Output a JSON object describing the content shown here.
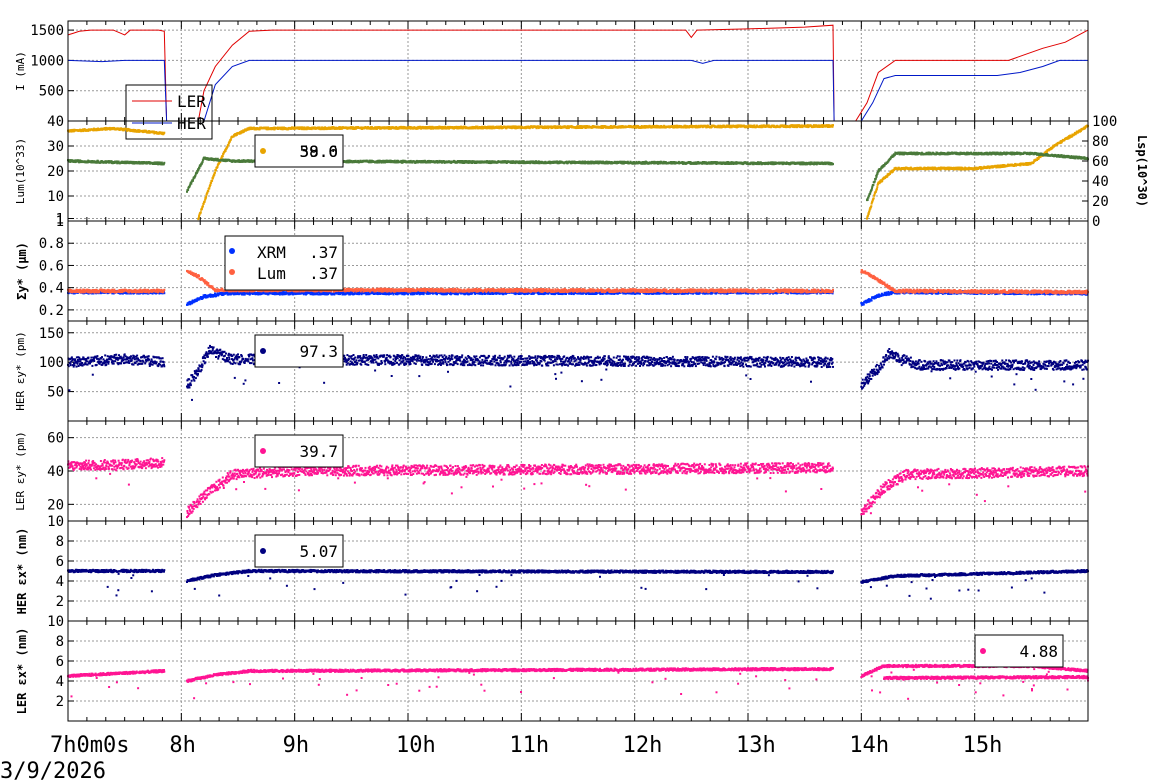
{
  "date": "3/9/2026",
  "time_axis": {
    "tick_labels": [
      "7h0m0s",
      "8h",
      "9h",
      "10h",
      "11h",
      "12h",
      "13h",
      "14h",
      "15h"
    ],
    "tick_hours": [
      7,
      8,
      9,
      10,
      11,
      12,
      13,
      14,
      15
    ],
    "range": [
      7.0,
      16.0
    ]
  },
  "colors": {
    "ler": "#e00000",
    "her": "#0018c8",
    "lum_orange": "#e8a400",
    "lum_green": "#4a7a3a",
    "xrm": "#0030ff",
    "lumsize": "#ff6040",
    "her_emit": "#000080",
    "ler_emit": "#ff1493"
  },
  "chart_data": [
    {
      "type": "line",
      "ylabel": "I (mA)",
      "ylim": [
        0,
        1650
      ],
      "ytick_labels": [
        "500",
        "1000",
        "1500"
      ],
      "yticks": [
        500,
        1000,
        1500
      ],
      "legend": {
        "placement": "bottom-left",
        "entries": [
          "LER",
          "HER"
        ]
      },
      "series": [
        {
          "name": "LER",
          "points": [
            [
              7.0,
              1420
            ],
            [
              7.05,
              1450
            ],
            [
              7.1,
              1480
            ],
            [
              7.2,
              1500
            ],
            [
              7.4,
              1500
            ],
            [
              7.5,
              1420
            ],
            [
              7.55,
              1500
            ],
            [
              7.75,
              1500
            ],
            [
              7.8,
              1500
            ],
            [
              7.85,
              1480
            ],
            [
              7.87,
              0
            ],
            [
              8.15,
              0
            ],
            [
              8.2,
              500
            ],
            [
              8.3,
              900
            ],
            [
              8.45,
              1250
            ],
            [
              8.6,
              1480
            ],
            [
              8.8,
              1500
            ],
            [
              12.45,
              1500
            ],
            [
              12.5,
              1380
            ],
            [
              12.55,
              1500
            ],
            [
              13.0,
              1520
            ],
            [
              13.5,
              1550
            ],
            [
              13.75,
              1580
            ],
            [
              13.76,
              0
            ],
            [
              13.95,
              0
            ],
            [
              14.05,
              300
            ],
            [
              14.15,
              800
            ],
            [
              14.3,
              1000
            ],
            [
              15.3,
              1000
            ],
            [
              15.45,
              1100
            ],
            [
              15.6,
              1200
            ],
            [
              15.8,
              1300
            ],
            [
              16.0,
              1500
            ]
          ]
        },
        {
          "name": "HER",
          "points": [
            [
              7.0,
              1000
            ],
            [
              7.3,
              980
            ],
            [
              7.5,
              1000
            ],
            [
              7.85,
              1000
            ],
            [
              7.87,
              0
            ],
            [
              8.2,
              0
            ],
            [
              8.3,
              600
            ],
            [
              8.45,
              900
            ],
            [
              8.6,
              1000
            ],
            [
              12.5,
              1000
            ],
            [
              12.6,
              950
            ],
            [
              12.7,
              1000
            ],
            [
              13.75,
              1000
            ],
            [
              13.76,
              0
            ],
            [
              14.0,
              0
            ],
            [
              14.1,
              300
            ],
            [
              14.2,
              700
            ],
            [
              14.3,
              750
            ],
            [
              15.2,
              750
            ],
            [
              15.4,
              800
            ],
            [
              15.6,
              900
            ],
            [
              15.75,
              1000
            ],
            [
              16.0,
              1000
            ]
          ]
        }
      ]
    },
    {
      "type": "scatter",
      "ylabel": "Lum(10^33)",
      "y2label": "Lsp(10^30)",
      "ylim": [
        0,
        40
      ],
      "ytick_labels": [
        "1",
        "10",
        "20",
        "30",
        "40"
      ],
      "yticks": [
        1,
        10,
        20,
        30,
        40
      ],
      "y2lim": [
        0,
        100
      ],
      "y2tick_labels": [
        "0",
        "20",
        "40",
        "60",
        "80",
        "100"
      ],
      "legend": {
        "placement": "top-center",
        "value": "38.0",
        "overlay_value": "59.6"
      },
      "series": [
        {
          "name": "Lum",
          "segments": [
            [
              [
                7.0,
                36
              ],
              [
                7.4,
                37
              ],
              [
                7.85,
                35
              ]
            ],
            [
              [
                8.15,
                1
              ],
              [
                8.3,
                20
              ],
              [
                8.45,
                34
              ],
              [
                8.6,
                37
              ],
              [
                13.75,
                38
              ]
            ],
            [
              [
                14.05,
                1
              ],
              [
                14.15,
                15
              ],
              [
                14.3,
                21
              ],
              [
                15.0,
                21
              ],
              [
                15.5,
                23
              ],
              [
                15.7,
                30
              ],
              [
                16.0,
                38
              ]
            ]
          ]
        },
        {
          "name": "Lsp",
          "segments": [
            [
              [
                7.0,
                24
              ],
              [
                7.85,
                23
              ]
            ],
            [
              [
                8.05,
                12
              ],
              [
                8.2,
                25
              ],
              [
                8.45,
                24
              ],
              [
                13.75,
                23
              ]
            ],
            [
              [
                14.05,
                8
              ],
              [
                14.15,
                20
              ],
              [
                14.3,
                27
              ],
              [
                15.0,
                27
              ],
              [
                15.5,
                27
              ],
              [
                16.0,
                25
              ]
            ]
          ]
        }
      ]
    },
    {
      "type": "scatter",
      "ylabel": "Σy* (μm)",
      "ylim": [
        0.1,
        1.0
      ],
      "ytick_labels": [
        "0.2",
        "0.4",
        "0.6",
        "0.8",
        "1"
      ],
      "yticks": [
        0.2,
        0.4,
        0.6,
        0.8,
        1.0
      ],
      "legend": {
        "placement": "top-center",
        "entries": [
          "XRM",
          "Lum"
        ],
        "values": [
          ".37",
          ".37"
        ]
      },
      "series": [
        {
          "name": "XRM",
          "segments": [
            [
              [
                7.0,
                0.36
              ],
              [
                7.85,
                0.36
              ]
            ],
            [
              [
                8.05,
                0.25
              ],
              [
                8.2,
                0.32
              ],
              [
                8.4,
                0.35
              ],
              [
                13.75,
                0.36
              ]
            ],
            [
              [
                14.0,
                0.25
              ],
              [
                14.15,
                0.33
              ],
              [
                14.3,
                0.36
              ],
              [
                16.0,
                0.35
              ]
            ]
          ]
        },
        {
          "name": "Lum",
          "segments": [
            [
              [
                7.0,
                0.37
              ],
              [
                7.85,
                0.37
              ]
            ],
            [
              [
                8.05,
                0.55
              ],
              [
                8.15,
                0.5
              ],
              [
                8.3,
                0.38
              ],
              [
                13.75,
                0.37
              ]
            ],
            [
              [
                14.0,
                0.55
              ],
              [
                14.1,
                0.5
              ],
              [
                14.3,
                0.37
              ],
              [
                16.0,
                0.36
              ]
            ]
          ]
        }
      ]
    },
    {
      "type": "scatter",
      "ylabel": "HER εy* (pm)",
      "ylim": [
        0,
        170
      ],
      "ytick_labels": [
        "50",
        "100",
        "150"
      ],
      "yticks": [
        50,
        100,
        150
      ],
      "legend": {
        "placement": "top-center",
        "value": "97.3"
      },
      "series": [
        {
          "name": "HER εy*",
          "segments": [
            [
              [
                7.0,
                100
              ],
              [
                7.5,
                105
              ],
              [
                7.85,
                100
              ]
            ],
            [
              [
                8.05,
                60
              ],
              [
                8.15,
                85
              ],
              [
                8.25,
                120
              ],
              [
                8.45,
                105
              ],
              [
                13.75,
                100
              ]
            ],
            [
              [
                14.0,
                60
              ],
              [
                14.15,
                90
              ],
              [
                14.25,
                115
              ],
              [
                14.5,
                95
              ],
              [
                16.0,
                95
              ]
            ]
          ]
        }
      ]
    },
    {
      "type": "scatter",
      "ylabel": "LER εy* (pm)",
      "ylim": [
        10,
        70
      ],
      "ytick_labels": [
        "10",
        "20",
        "40",
        "60"
      ],
      "yticks": [
        10,
        20,
        40,
        60
      ],
      "legend": {
        "placement": "top-center",
        "value": "39.7"
      },
      "series": [
        {
          "name": "LER εy*",
          "segments": [
            [
              [
                7.0,
                43
              ],
              [
                7.5,
                44
              ],
              [
                7.85,
                45
              ]
            ],
            [
              [
                8.05,
                15
              ],
              [
                8.2,
                25
              ],
              [
                8.45,
                38
              ],
              [
                9.0,
                40
              ],
              [
                13.75,
                42
              ]
            ],
            [
              [
                14.0,
                15
              ],
              [
                14.2,
                30
              ],
              [
                14.4,
                38
              ],
              [
                16.0,
                40
              ]
            ]
          ]
        }
      ]
    },
    {
      "type": "scatter",
      "ylabel": "HER εx* (nm)",
      "ylim": [
        0,
        10
      ],
      "ytick_labels": [
        "2",
        "4",
        "6",
        "8"
      ],
      "yticks": [
        2,
        4,
        6,
        8
      ],
      "legend": {
        "placement": "top-center",
        "value": "5.07"
      },
      "series": [
        {
          "name": "HER εx*",
          "segments": [
            [
              [
                7.0,
                5.0
              ],
              [
                7.85,
                5.0
              ]
            ],
            [
              [
                8.05,
                4.0
              ],
              [
                8.3,
                4.6
              ],
              [
                8.6,
                5.0
              ],
              [
                13.75,
                4.9
              ]
            ],
            [
              [
                14.0,
                3.9
              ],
              [
                14.3,
                4.5
              ],
              [
                16.0,
                5.0
              ]
            ]
          ]
        }
      ]
    },
    {
      "type": "scatter",
      "ylabel": "LER εx* (nm)",
      "ylim": [
        0,
        10
      ],
      "ytick_labels": [
        "2",
        "4",
        "6",
        "8",
        "10"
      ],
      "yticks": [
        2,
        4,
        6,
        8,
        10
      ],
      "legend": {
        "placement": "top-right",
        "value": "4.88"
      },
      "series": [
        {
          "name": "LER εx*",
          "segments": [
            [
              [
                7.0,
                4.5
              ],
              [
                7.85,
                5.0
              ]
            ],
            [
              [
                8.05,
                4.0
              ],
              [
                8.3,
                4.6
              ],
              [
                8.6,
                5.0
              ],
              [
                13.75,
                5.2
              ]
            ],
            [
              [
                14.0,
                4.5
              ],
              [
                14.2,
                5.5
              ],
              [
                15.5,
                5.5
              ],
              [
                16.0,
                5.0
              ]
            ]
          ]
        },
        {
          "name": "LER εx* band2",
          "segments": [
            [
              [
                14.2,
                4.3
              ],
              [
                16.0,
                4.4
              ]
            ]
          ]
        }
      ]
    }
  ]
}
